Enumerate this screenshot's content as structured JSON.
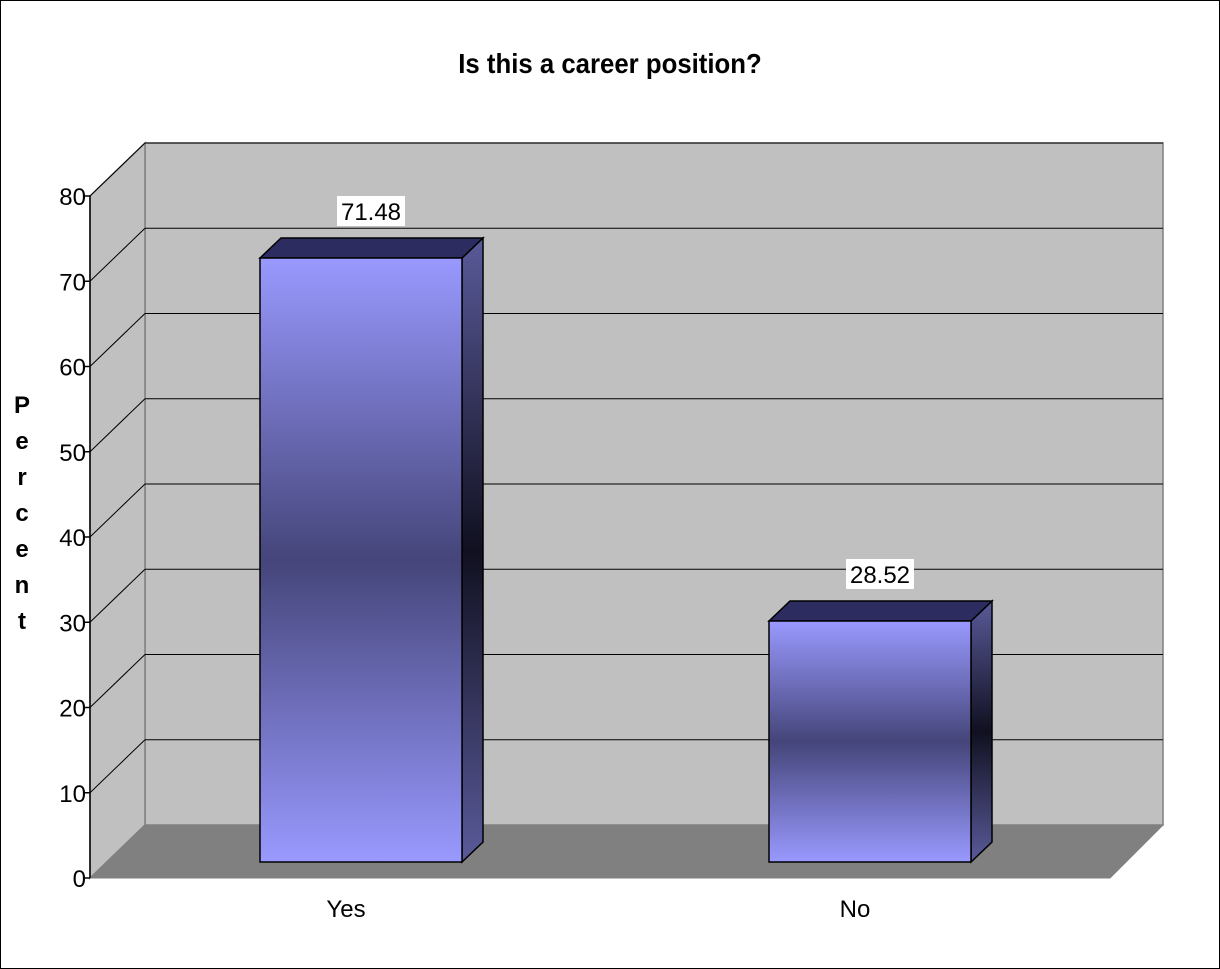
{
  "chart_data": {
    "type": "bar",
    "title": "Is this a career position?",
    "ylabel": "Percent",
    "xlabel": "",
    "categories": [
      "Yes",
      "No"
    ],
    "values": [
      71.48,
      28.52
    ],
    "data_labels": [
      "71.48",
      "28.52"
    ],
    "ylim": [
      0,
      80
    ],
    "yticks": [
      0,
      10,
      20,
      30,
      40,
      50,
      60,
      70,
      80
    ],
    "grid": true,
    "style": "3d",
    "colors": {
      "bar_light": "#9999ff",
      "bar_dark": "#45457a",
      "wall": "#c0c0c0",
      "floor": "#808080"
    }
  }
}
